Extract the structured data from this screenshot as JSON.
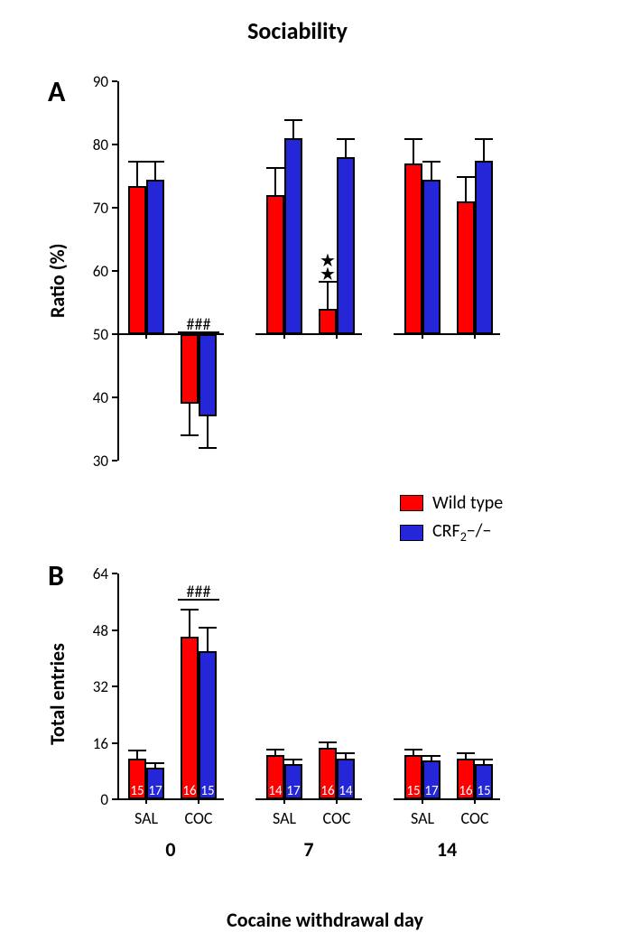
{
  "title": "Sociability",
  "panel_labels": {
    "A": "A",
    "B": "B"
  },
  "x_axis_label": "Cocaine withdrawal day",
  "colors": {
    "wildtype": "#ff0000",
    "crf2": "#2626d9",
    "axis": "#000000",
    "background": "#ffffff"
  },
  "legend": {
    "wildtype": "Wild type",
    "crf2_prefix": "CRF",
    "crf2_sub": "2",
    "crf2_suffix": "−/−"
  },
  "days": [
    "0",
    "7",
    "14"
  ],
  "treatments": [
    "SAL",
    "COC"
  ],
  "panelA": {
    "y_label": "Ratio (%)",
    "y_min": 30,
    "y_max": 90,
    "y_ticks": [
      30,
      40,
      50,
      60,
      70,
      80,
      90
    ],
    "baseline": 50,
    "groups": [
      {
        "wt": {
          "value": 73.5,
          "err": 4.0
        },
        "ko": {
          "value": 74.5,
          "err": 3.0
        }
      },
      {
        "wt": {
          "value": 39.0,
          "err": 5.0
        },
        "ko": {
          "value": 37.0,
          "err": 5.0
        },
        "sig": "###"
      },
      {
        "wt": {
          "value": 72.0,
          "err": 4.5
        },
        "ko": {
          "value": 81.0,
          "err": 3.0
        }
      },
      {
        "wt": {
          "value": 54.0,
          "err": 4.5,
          "stars": 2
        },
        "ko": {
          "value": 78.0,
          "err": 3.0
        }
      },
      {
        "wt": {
          "value": 77.0,
          "err": 4.0
        },
        "ko": {
          "value": 74.5,
          "err": 3.0
        }
      },
      {
        "wt": {
          "value": 71.0,
          "err": 4.0
        },
        "ko": {
          "value": 77.5,
          "err": 3.5
        }
      }
    ]
  },
  "panelB": {
    "y_label": "Total entries",
    "y_min": 0,
    "y_max": 64,
    "y_ticks": [
      0,
      16,
      32,
      48,
      64
    ],
    "groups": [
      {
        "wt": {
          "value": 11.5,
          "err": 2.5,
          "n": "15"
        },
        "ko": {
          "value": 9.0,
          "err": 1.5,
          "n": "17"
        }
      },
      {
        "wt": {
          "value": 46.0,
          "err": 8.0,
          "n": "16"
        },
        "ko": {
          "value": 42.0,
          "err": 7.0,
          "n": "15"
        },
        "sig": "###"
      },
      {
        "wt": {
          "value": 12.5,
          "err": 1.8,
          "n": "14"
        },
        "ko": {
          "value": 10.0,
          "err": 1.4,
          "n": "17"
        }
      },
      {
        "wt": {
          "value": 14.5,
          "err": 2.0,
          "n": "16"
        },
        "ko": {
          "value": 11.5,
          "err": 1.8,
          "n": "14"
        }
      },
      {
        "wt": {
          "value": 12.5,
          "err": 1.8,
          "n": "15"
        },
        "ko": {
          "value": 11.0,
          "err": 1.6,
          "n": "17"
        }
      },
      {
        "wt": {
          "value": 11.5,
          "err": 1.8,
          "n": "16"
        },
        "ko": {
          "value": 10.0,
          "err": 1.4,
          "n": "15"
        }
      }
    ]
  }
}
